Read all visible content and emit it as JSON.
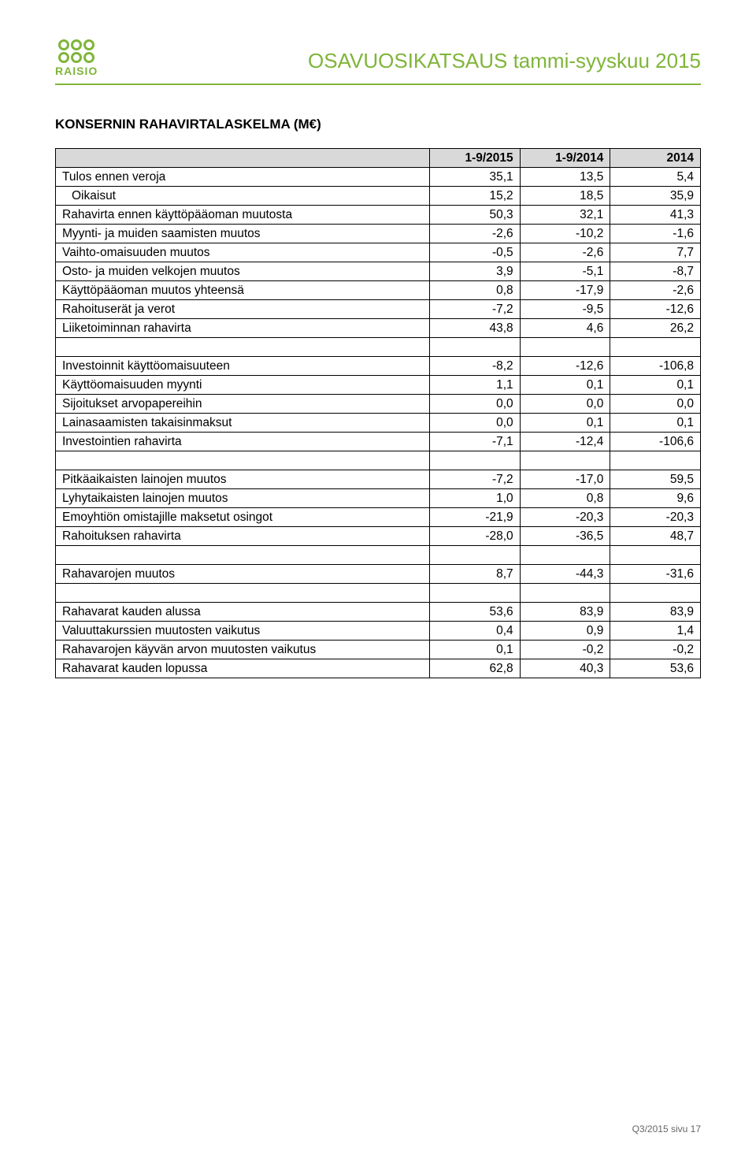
{
  "header": {
    "brand": "RAISIO",
    "title": "OSAVUOSIKATSAUS tammi-syyskuu 2015"
  },
  "section_title": "KONSERNIN RAHAVIRTALASKELMA (M€)",
  "columns": [
    "1-9/2015",
    "1-9/2014",
    "2014"
  ],
  "rows": [
    {
      "label": "Tulos ennen veroja",
      "v": [
        "35,1",
        "13,5",
        "5,4"
      ]
    },
    {
      "label": "Oikaisut",
      "indent": true,
      "v": [
        "15,2",
        "18,5",
        "35,9"
      ]
    },
    {
      "label": "Rahavirta ennen käyttöpääoman muutosta",
      "v": [
        "50,3",
        "32,1",
        "41,3"
      ]
    },
    {
      "label": "Myynti- ja muiden saamisten muutos",
      "v": [
        "-2,6",
        "-10,2",
        "-1,6"
      ]
    },
    {
      "label": "Vaihto-omaisuuden muutos",
      "v": [
        "-0,5",
        "-2,6",
        "7,7"
      ]
    },
    {
      "label": "Osto- ja muiden velkojen muutos",
      "v": [
        "3,9",
        "-5,1",
        "-8,7"
      ]
    },
    {
      "label": "Käyttöpääoman muutos yhteensä",
      "v": [
        "0,8",
        "-17,9",
        "-2,6"
      ]
    },
    {
      "label": "Rahoituserät ja verot",
      "v": [
        "-7,2",
        "-9,5",
        "-12,6"
      ]
    },
    {
      "label": "Liiketoiminnan rahavirta",
      "v": [
        "43,8",
        "4,6",
        "26,2"
      ]
    },
    {
      "spacer": true
    },
    {
      "label": "Investoinnit käyttöomaisuuteen",
      "v": [
        "-8,2",
        "-12,6",
        "-106,8"
      ]
    },
    {
      "label": "Käyttöomaisuuden myynti",
      "v": [
        "1,1",
        "0,1",
        "0,1"
      ]
    },
    {
      "label": "Sijoitukset arvopapereihin",
      "v": [
        "0,0",
        "0,0",
        "0,0"
      ]
    },
    {
      "label": "Lainasaamisten takaisinmaksut",
      "v": [
        "0,0",
        "0,1",
        "0,1"
      ]
    },
    {
      "label": "Investointien rahavirta",
      "v": [
        "-7,1",
        "-12,4",
        "-106,6"
      ]
    },
    {
      "spacer": true
    },
    {
      "label": "Pitkäaikaisten lainojen muutos",
      "v": [
        "-7,2",
        "-17,0",
        "59,5"
      ]
    },
    {
      "label": "Lyhytaikaisten lainojen muutos",
      "v": [
        "1,0",
        "0,8",
        "9,6"
      ]
    },
    {
      "label": "Emoyhtiön omistajille maksetut osingot",
      "v": [
        "-21,9",
        "-20,3",
        "-20,3"
      ]
    },
    {
      "label": "Rahoituksen rahavirta",
      "v": [
        "-28,0",
        "-36,5",
        "48,7"
      ]
    },
    {
      "spacer": true
    },
    {
      "label": "Rahavarojen muutos",
      "v": [
        "8,7",
        "-44,3",
        "-31,6"
      ]
    },
    {
      "spacer": true
    },
    {
      "label": "Rahavarat kauden alussa",
      "v": [
        "53,6",
        "83,9",
        "83,9"
      ]
    },
    {
      "label": "Valuuttakurssien muutosten vaikutus",
      "v": [
        "0,4",
        "0,9",
        "1,4"
      ]
    },
    {
      "label": "Rahavarojen käyvän arvon muutosten vaikutus",
      "v": [
        "0,1",
        "-0,2",
        "-0,2"
      ]
    },
    {
      "label": "Rahavarat kauden lopussa",
      "v": [
        "62,8",
        "40,3",
        "53,6"
      ]
    }
  ],
  "footer": "Q3/2015 sivu 17",
  "colors": {
    "accent": "#7fb539",
    "header_bg": "#d9d9d9",
    "text": "#000000",
    "footer_text": "#666666"
  }
}
